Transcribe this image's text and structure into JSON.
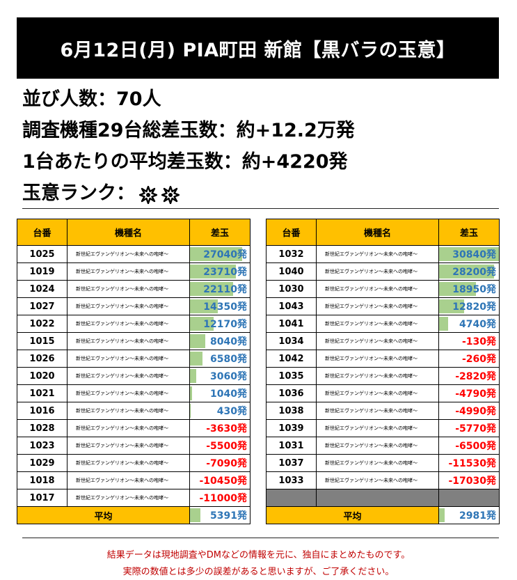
{
  "header": {
    "title": "6月12日(月) PIA町田 新館【黒バラの玉意】"
  },
  "summary": {
    "line1": "並び人数：70人",
    "line2": "調査機種29台総差玉数：約+12.2万発",
    "line3": "1台あたりの平均差玉数：約+4220発",
    "line4": "玉意ランク：",
    "rank_icons": [
      "burst-icon",
      "burst-icon"
    ]
  },
  "table_headers": {
    "machine_no": "台番",
    "model": "機種名",
    "diff": "差玉"
  },
  "left_table": {
    "rows": [
      {
        "no": "1025",
        "model": "新世紀エヴァンゲリオン～未来への咆哮～",
        "diff": "27040発",
        "value": 27040
      },
      {
        "no": "1019",
        "model": "新世紀エヴァンゲリオン～未来への咆哮～",
        "diff": "23710発",
        "value": 23710
      },
      {
        "no": "1024",
        "model": "新世紀エヴァンゲリオン～未来への咆哮～",
        "diff": "22110発",
        "value": 22110
      },
      {
        "no": "1027",
        "model": "新世紀エヴァンゲリオン～未来への咆哮～",
        "diff": "14350発",
        "value": 14350
      },
      {
        "no": "1022",
        "model": "新世紀エヴァンゲリオン～未来への咆哮～",
        "diff": "12170発",
        "value": 12170
      },
      {
        "no": "1015",
        "model": "新世紀エヴァンゲリオン～未来への咆哮～",
        "diff": "8040発",
        "value": 8040
      },
      {
        "no": "1026",
        "model": "新世紀エヴァンゲリオン～未来への咆哮～",
        "diff": "6580発",
        "value": 6580
      },
      {
        "no": "1020",
        "model": "新世紀エヴァンゲリオン～未来への咆哮～",
        "diff": "3060発",
        "value": 3060
      },
      {
        "no": "1021",
        "model": "新世紀エヴァンゲリオン～未来への咆哮～",
        "diff": "1040発",
        "value": 1040
      },
      {
        "no": "1016",
        "model": "新世紀エヴァンゲリオン～未来への咆哮～",
        "diff": "430発",
        "value": 430
      },
      {
        "no": "1028",
        "model": "新世紀エヴァンゲリオン～未来への咆哮～",
        "diff": "-3630発",
        "value": -3630
      },
      {
        "no": "1023",
        "model": "新世紀エヴァンゲリオン～未来への咆哮～",
        "diff": "-5500発",
        "value": -5500
      },
      {
        "no": "1029",
        "model": "新世紀エヴァンゲリオン～未来への咆哮～",
        "diff": "-7090発",
        "value": -7090
      },
      {
        "no": "1018",
        "model": "新世紀エヴァンゲリオン～未来への咆哮～",
        "diff": "-10450発",
        "value": -10450
      },
      {
        "no": "1017",
        "model": "新世紀エヴァンゲリオン～未来への咆哮～",
        "diff": "-11000発",
        "value": -11000
      }
    ],
    "avg_label": "平均",
    "avg_diff": "5391発",
    "avg_value": 5391
  },
  "right_table": {
    "rows": [
      {
        "no": "1032",
        "model": "新世紀エヴァンゲリオン～未来への咆哮～",
        "diff": "30840発",
        "value": 30840
      },
      {
        "no": "1040",
        "model": "新世紀エヴァンゲリオン～未来への咆哮～",
        "diff": "28200発",
        "value": 28200
      },
      {
        "no": "1030",
        "model": "新世紀エヴァンゲリオン～未来への咆哮～",
        "diff": "18950発",
        "value": 18950
      },
      {
        "no": "1043",
        "model": "新世紀エヴァンゲリオン～未来への咆哮～",
        "diff": "12820発",
        "value": 12820
      },
      {
        "no": "1041",
        "model": "新世紀エヴァンゲリオン～未来への咆哮～",
        "diff": "4740発",
        "value": 4740
      },
      {
        "no": "1034",
        "model": "新世紀エヴァンゲリオン～未来への咆哮～",
        "diff": "-130発",
        "value": -130
      },
      {
        "no": "1042",
        "model": "新世紀エヴァンゲリオン～未来への咆哮～",
        "diff": "-260発",
        "value": -260
      },
      {
        "no": "1035",
        "model": "新世紀エヴァンゲリオン～未来への咆哮～",
        "diff": "-2820発",
        "value": -2820
      },
      {
        "no": "1036",
        "model": "新世紀エヴァンゲリオン～未来への咆哮～",
        "diff": "-4790発",
        "value": -4790
      },
      {
        "no": "1038",
        "model": "新世紀エヴァンゲリオン～未来への咆哮～",
        "diff": "-4990発",
        "value": -4990
      },
      {
        "no": "1039",
        "model": "新世紀エヴァンゲリオン～未来への咆哮～",
        "diff": "-5770発",
        "value": -5770
      },
      {
        "no": "1031",
        "model": "新世紀エヴァンゲリオン～未来への咆哮～",
        "diff": "-6500発",
        "value": -6500
      },
      {
        "no": "1037",
        "model": "新世紀エヴァンゲリオン～未来への咆哮～",
        "diff": "-11530発",
        "value": -11530
      },
      {
        "no": "1033",
        "model": "新世紀エヴァンゲリオン～未来への咆哮～",
        "diff": "-17030発",
        "value": -17030
      }
    ],
    "avg_label": "平均",
    "avg_diff": "2981発",
    "avg_value": 2981
  },
  "footer": {
    "line1": "結果データは現地調査やDMなどの情報を元に、独自にまとめたものです。",
    "line2": "実際の数値とは多少の誤差があると思いますが、ご了承ください。"
  },
  "colors": {
    "header_bg": "#000000",
    "table_header_bg": "#FFC000",
    "bar": "#A9D08E",
    "positive": "#2E75B6",
    "negative": "#FF0000",
    "footer_text": "#C00000",
    "empty_row": "#808080"
  }
}
